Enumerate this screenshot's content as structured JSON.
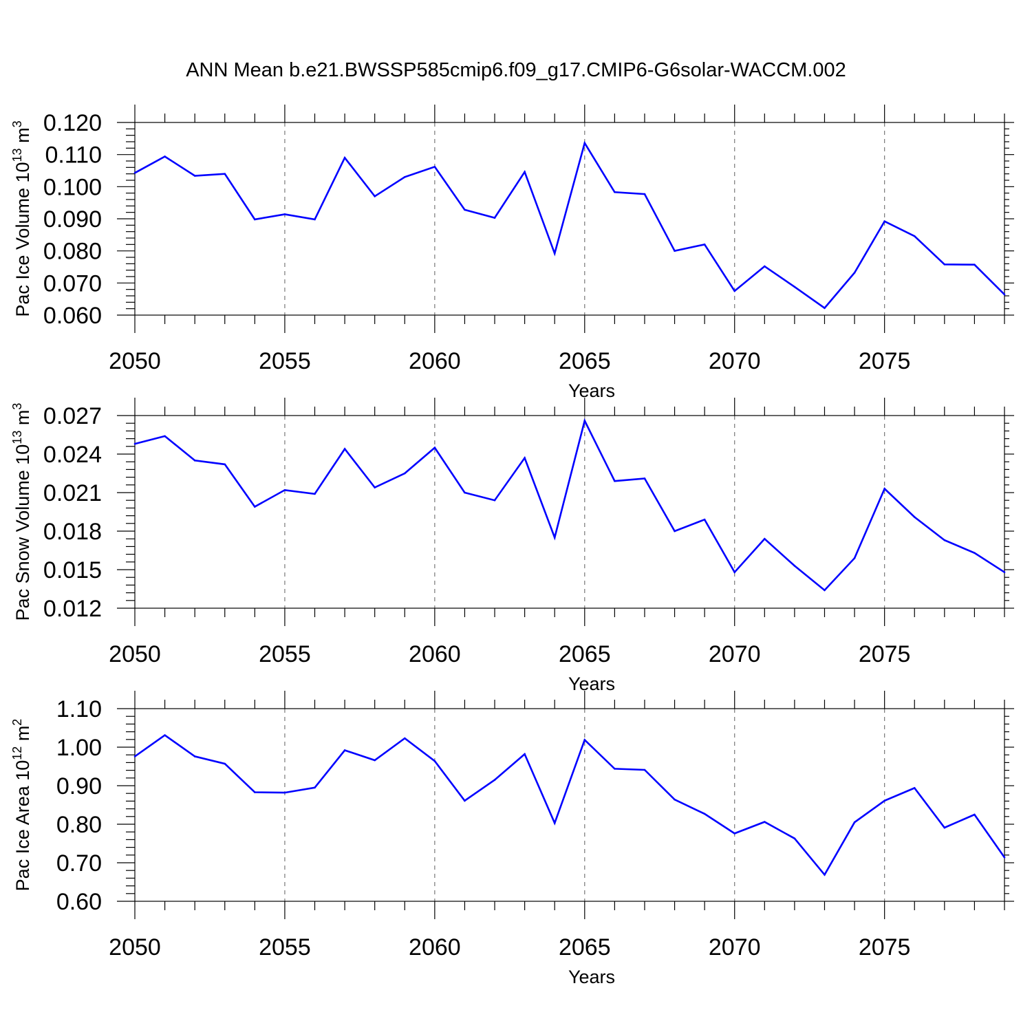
{
  "title": "ANN Mean b.e21.BWSSP585cmip6.f09_g17.CMIP6-G6solar-WACCM.002",
  "line_color": "#0000ff",
  "chart_data": [
    {
      "type": "line",
      "ylabel": "Pac Ice Volume 10",
      "ylabel_exp": "13",
      "ylabel_unit": " m",
      "ylabel_unit_exp": "3",
      "xlabel": "Years",
      "xlim": [
        2050,
        2079
      ],
      "ylim": [
        0.06,
        0.12
      ],
      "xticks": [
        "2050",
        "2055",
        "2060",
        "2065",
        "2070",
        "2075"
      ],
      "yticks": [
        "0.060",
        "0.070",
        "0.080",
        "0.090",
        "0.100",
        "0.110",
        "0.120"
      ],
      "x": [
        2050,
        2051,
        2052,
        2053,
        2054,
        2055,
        2056,
        2057,
        2058,
        2059,
        2060,
        2061,
        2062,
        2063,
        2064,
        2065,
        2066,
        2067,
        2068,
        2069,
        2070,
        2071,
        2072,
        2073,
        2074,
        2075,
        2076,
        2077,
        2078,
        2079
      ],
      "series": [
        {
          "values": [
            0.1043,
            0.1094,
            0.1034,
            0.104,
            0.0898,
            0.0914,
            0.0898,
            0.109,
            0.097,
            0.103,
            0.1062,
            0.0928,
            0.0903,
            0.1046,
            0.0792,
            0.1136,
            0.0983,
            0.0977,
            0.08,
            0.082,
            0.0675,
            0.0752,
            0.0688,
            0.0622,
            0.0732,
            0.0892,
            0.0846,
            0.0758,
            0.0757,
            0.0664
          ]
        }
      ]
    },
    {
      "type": "line",
      "ylabel": "Pac Snow Volume 10",
      "ylabel_exp": "13",
      "ylabel_unit": " m",
      "ylabel_unit_exp": "3",
      "xlabel": "Years",
      "xlim": [
        2050,
        2079
      ],
      "ylim": [
        0.012,
        0.027
      ],
      "xticks": [
        "2050",
        "2055",
        "2060",
        "2065",
        "2070",
        "2075"
      ],
      "yticks": [
        "0.012",
        "0.015",
        "0.018",
        "0.021",
        "0.024",
        "0.027"
      ],
      "x": [
        2050,
        2051,
        2052,
        2053,
        2054,
        2055,
        2056,
        2057,
        2058,
        2059,
        2060,
        2061,
        2062,
        2063,
        2064,
        2065,
        2066,
        2067,
        2068,
        2069,
        2070,
        2071,
        2072,
        2073,
        2074,
        2075,
        2076,
        2077,
        2078,
        2079
      ],
      "series": [
        {
          "values": [
            0.0248,
            0.0254,
            0.0235,
            0.0232,
            0.0199,
            0.0212,
            0.0209,
            0.0244,
            0.0214,
            0.0225,
            0.0245,
            0.021,
            0.0204,
            0.0237,
            0.0175,
            0.0266,
            0.0219,
            0.0221,
            0.018,
            0.0189,
            0.0148,
            0.0174,
            0.0153,
            0.0134,
            0.0159,
            0.0213,
            0.0191,
            0.0173,
            0.0163,
            0.0148
          ]
        }
      ]
    },
    {
      "type": "line",
      "ylabel": "Pac Ice Area 10",
      "ylabel_exp": "12",
      "ylabel_unit": " m",
      "ylabel_unit_exp": "2",
      "xlabel": "Years",
      "xlim": [
        2050,
        2079
      ],
      "ylim": [
        0.6,
        1.1
      ],
      "xticks": [
        "2050",
        "2055",
        "2060",
        "2065",
        "2070",
        "2075"
      ],
      "yticks": [
        "0.60",
        "0.70",
        "0.80",
        "0.90",
        "1.00",
        "1.10"
      ],
      "x": [
        2050,
        2051,
        2052,
        2053,
        2054,
        2055,
        2056,
        2057,
        2058,
        2059,
        2060,
        2061,
        2062,
        2063,
        2064,
        2065,
        2066,
        2067,
        2068,
        2069,
        2070,
        2071,
        2072,
        2073,
        2074,
        2075,
        2076,
        2077,
        2078,
        2079
      ],
      "series": [
        {
          "values": [
            0.976,
            1.031,
            0.976,
            0.957,
            0.883,
            0.882,
            0.895,
            0.992,
            0.966,
            1.023,
            0.964,
            0.861,
            0.915,
            0.982,
            0.803,
            1.019,
            0.944,
            0.941,
            0.864,
            0.827,
            0.776,
            0.806,
            0.763,
            0.669,
            0.805,
            0.861,
            0.894,
            0.791,
            0.825,
            0.714
          ]
        }
      ]
    }
  ]
}
